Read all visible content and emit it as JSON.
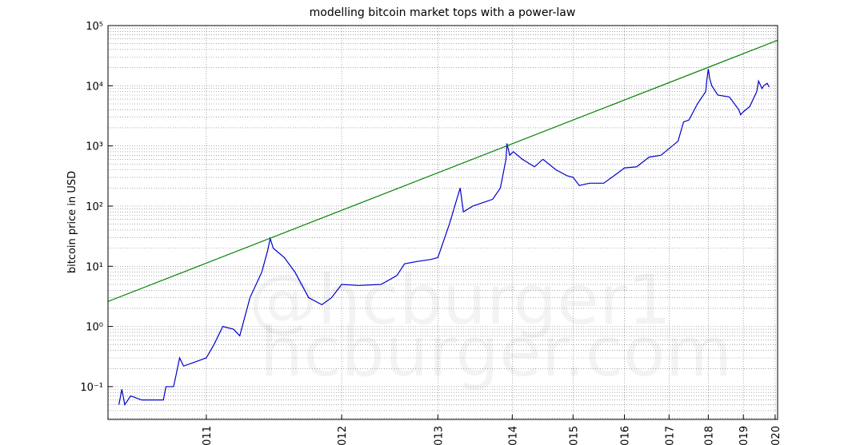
{
  "chart_data": {
    "type": "line",
    "title": "modelling bitcoin market tops with a power-law",
    "y_label": "bitcoin price in USD",
    "watermark": [
      "@hcburger1",
      "hcburger.com"
    ],
    "xscale": "log",
    "yscale": "log",
    "grid": true,
    "xlim": [
      542,
      4045
    ],
    "ylim": [
      0.0285,
      100000
    ],
    "xticks": [
      {
        "value": 728,
        "label": "011"
      },
      {
        "value": 1093,
        "label": "012"
      },
      {
        "value": 1459,
        "label": "013"
      },
      {
        "value": 1824,
        "label": "014"
      },
      {
        "value": 2189,
        "label": "015"
      },
      {
        "value": 2554,
        "label": "016"
      },
      {
        "value": 2920,
        "label": "017"
      },
      {
        "value": 3285,
        "label": "018"
      },
      {
        "value": 3650,
        "label": "019"
      },
      {
        "value": 4015,
        "label": "020"
      }
    ],
    "yticks": [
      {
        "value": 0.1,
        "label": "10⁻¹"
      },
      {
        "value": 1,
        "label": "10⁰"
      },
      {
        "value": 10,
        "label": "10¹"
      },
      {
        "value": 100,
        "label": "10²"
      },
      {
        "value": 1000,
        "label": "10³"
      },
      {
        "value": 10000,
        "label": "10⁴"
      },
      {
        "value": 100000,
        "label": "10⁵"
      }
    ],
    "series": [
      {
        "color": "#0000cc",
        "x": [
          560,
          565,
          570,
          580,
          600,
          640,
          645,
          660,
          672,
          680,
          700,
          728,
          745,
          765,
          790,
          805,
          830,
          860,
          875,
          882,
          890,
          920,
          950,
          990,
          1030,
          1060,
          1093,
          1150,
          1230,
          1290,
          1320,
          1370,
          1430,
          1459,
          1510,
          1560,
          1575,
          1620,
          1720,
          1760,
          1790,
          1795,
          1810,
          1830,
          1880,
          1950,
          2000,
          2080,
          2150,
          2190,
          2230,
          2300,
          2400,
          2500,
          2554,
          2650,
          2750,
          2850,
          2920,
          3000,
          3050,
          3100,
          3180,
          3260,
          3270,
          3285,
          3300,
          3320,
          3380,
          3500,
          3600,
          3620,
          3650,
          3720,
          3800,
          3820,
          3860,
          3880,
          3920,
          3945
        ],
        "values": [
          0.05,
          0.09,
          0.05,
          0.07,
          0.06,
          0.06,
          0.1,
          0.1,
          0.3,
          0.22,
          0.25,
          0.3,
          0.5,
          1.0,
          0.9,
          0.7,
          3,
          8,
          18,
          29,
          20,
          14,
          8,
          3,
          2.3,
          3,
          5,
          4.8,
          5,
          7,
          11,
          12,
          13,
          14,
          50,
          200,
          80,
          100,
          130,
          200,
          600,
          1100,
          700,
          800,
          600,
          450,
          600,
          400,
          320,
          300,
          220,
          240,
          240,
          350,
          430,
          450,
          650,
          700,
          900,
          1200,
          2500,
          2700,
          5000,
          8000,
          12000,
          19000,
          13000,
          10000,
          7000,
          6500,
          4000,
          3300,
          3700,
          4500,
          8000,
          12000,
          9000,
          10000,
          11000,
          9500
        ]
      },
      {
        "color": "#008000",
        "x": [
          542,
          4045
        ],
        "values": [
          2.6,
          57000
        ]
      }
    ]
  }
}
